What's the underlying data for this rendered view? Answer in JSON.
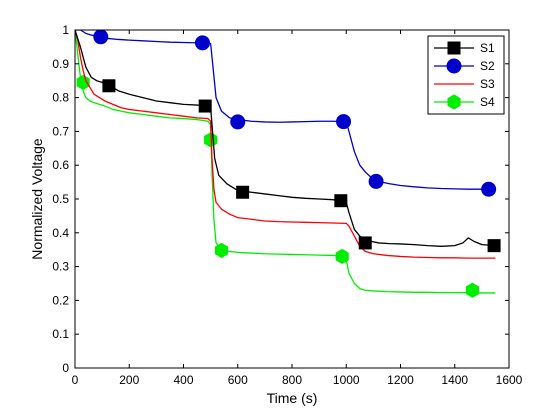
{
  "chart_data": {
    "type": "line",
    "title": "",
    "xlabel": "Time (s)",
    "ylabel": "Normalized Voltage",
    "xlim": [
      0,
      1600
    ],
    "ylim": [
      0,
      1
    ],
    "xticks": [
      0,
      200,
      400,
      600,
      800,
      1000,
      1200,
      1400,
      1600
    ],
    "yticks": [
      0,
      0.1,
      0.2,
      0.3,
      0.4,
      0.5,
      0.6,
      0.7,
      0.8,
      0.9,
      1
    ],
    "grid": false,
    "legend_position": "top-right",
    "series": [
      {
        "name": "S1",
        "color": "#000000",
        "marker": "square",
        "x": [
          0,
          20,
          40,
          60,
          80,
          100,
          130,
          160,
          200,
          250,
          300,
          350,
          400,
          450,
          480,
          500,
          505,
          515,
          530,
          560,
          600,
          650,
          700,
          750,
          800,
          850,
          900,
          950,
          990,
          1000,
          1010,
          1030,
          1050,
          1070,
          1090,
          1120,
          1160,
          1200,
          1250,
          1300,
          1350,
          1400,
          1430,
          1450,
          1470,
          1500,
          1550
        ],
        "y": [
          1.0,
          0.95,
          0.89,
          0.86,
          0.85,
          0.845,
          0.835,
          0.82,
          0.81,
          0.8,
          0.79,
          0.785,
          0.78,
          0.778,
          0.775,
          0.772,
          0.72,
          0.62,
          0.57,
          0.545,
          0.525,
          0.52,
          0.515,
          0.51,
          0.505,
          0.502,
          0.5,
          0.498,
          0.495,
          0.49,
          0.46,
          0.41,
          0.39,
          0.38,
          0.375,
          0.37,
          0.368,
          0.367,
          0.365,
          0.362,
          0.36,
          0.362,
          0.37,
          0.385,
          0.375,
          0.365,
          0.362
        ],
        "markers_x": [
          125,
          480,
          618,
          980,
          1070,
          1545
        ],
        "markers_y": [
          0.835,
          0.775,
          0.52,
          0.495,
          0.37,
          0.362
        ]
      },
      {
        "name": "S2",
        "color": "#0000cc",
        "marker": "circle",
        "x": [
          0,
          20,
          40,
          60,
          90,
          120,
          160,
          200,
          250,
          300,
          350,
          400,
          450,
          480,
          500,
          510,
          520,
          540,
          570,
          600,
          650,
          700,
          750,
          800,
          850,
          900,
          950,
          1000,
          1010,
          1030,
          1050,
          1070,
          1090,
          1110,
          1130,
          1160,
          1200,
          1250,
          1300,
          1350,
          1400,
          1450,
          1500,
          1545
        ],
        "y": [
          1.0,
          1.0,
          0.99,
          0.985,
          0.98,
          0.975,
          0.972,
          0.97,
          0.968,
          0.966,
          0.964,
          0.963,
          0.962,
          0.961,
          0.96,
          0.88,
          0.8,
          0.76,
          0.74,
          0.735,
          0.73,
          0.728,
          0.727,
          0.728,
          0.729,
          0.73,
          0.73,
          0.729,
          0.7,
          0.64,
          0.6,
          0.58,
          0.565,
          0.555,
          0.55,
          0.545,
          0.54,
          0.536,
          0.533,
          0.531,
          0.53,
          0.529,
          0.529,
          0.528
        ],
        "markers_x": [
          95,
          470,
          600,
          990,
          1110,
          1525
        ],
        "markers_y": [
          0.98,
          0.962,
          0.728,
          0.729,
          0.552,
          0.529
        ]
      },
      {
        "name": "S3",
        "color": "#ff0000",
        "marker": "none",
        "x": [
          0,
          10,
          20,
          30,
          40,
          55,
          70,
          90,
          110,
          140,
          170,
          200,
          250,
          300,
          350,
          400,
          450,
          490,
          500,
          505,
          512,
          520,
          540,
          570,
          600,
          650,
          700,
          750,
          800,
          850,
          900,
          950,
          1000,
          1010,
          1030,
          1050,
          1070,
          1100,
          1150,
          1200,
          1250,
          1300,
          1350,
          1400,
          1450,
          1500,
          1550
        ],
        "y": [
          1.0,
          0.97,
          0.92,
          0.88,
          0.85,
          0.83,
          0.81,
          0.8,
          0.79,
          0.78,
          0.77,
          0.765,
          0.76,
          0.755,
          0.75,
          0.745,
          0.74,
          0.738,
          0.73,
          0.62,
          0.53,
          0.49,
          0.47,
          0.455,
          0.445,
          0.44,
          0.435,
          0.433,
          0.432,
          0.431,
          0.43,
          0.429,
          0.428,
          0.42,
          0.39,
          0.36,
          0.345,
          0.338,
          0.333,
          0.33,
          0.328,
          0.327,
          0.326,
          0.326,
          0.325,
          0.325,
          0.325
        ],
        "markers_x": [],
        "markers_y": []
      },
      {
        "name": "S4",
        "color": "#00ee00",
        "marker": "hexagon",
        "x": [
          0,
          10,
          20,
          30,
          40,
          55,
          70,
          90,
          110,
          140,
          170,
          200,
          250,
          300,
          350,
          400,
          450,
          490,
          500,
          505,
          512,
          520,
          540,
          570,
          600,
          650,
          700,
          750,
          800,
          850,
          900,
          950,
          990,
          1000,
          1010,
          1030,
          1050,
          1070,
          1100,
          1150,
          1200,
          1250,
          1300,
          1350,
          1400,
          1450,
          1500,
          1550
        ],
        "y": [
          1.0,
          0.93,
          0.86,
          0.82,
          0.8,
          0.79,
          0.785,
          0.78,
          0.775,
          0.765,
          0.76,
          0.755,
          0.75,
          0.745,
          0.74,
          0.738,
          0.735,
          0.73,
          0.72,
          0.58,
          0.44,
          0.37,
          0.35,
          0.345,
          0.342,
          0.34,
          0.338,
          0.337,
          0.336,
          0.335,
          0.334,
          0.333,
          0.332,
          0.32,
          0.28,
          0.25,
          0.235,
          0.23,
          0.228,
          0.226,
          0.225,
          0.224,
          0.224,
          0.223,
          0.223,
          0.223,
          0.222,
          0.222
        ],
        "markers_x": [
          30,
          500,
          540,
          985,
          1465
        ],
        "markers_y": [
          0.845,
          0.675,
          0.348,
          0.33,
          0.23
        ]
      }
    ]
  }
}
